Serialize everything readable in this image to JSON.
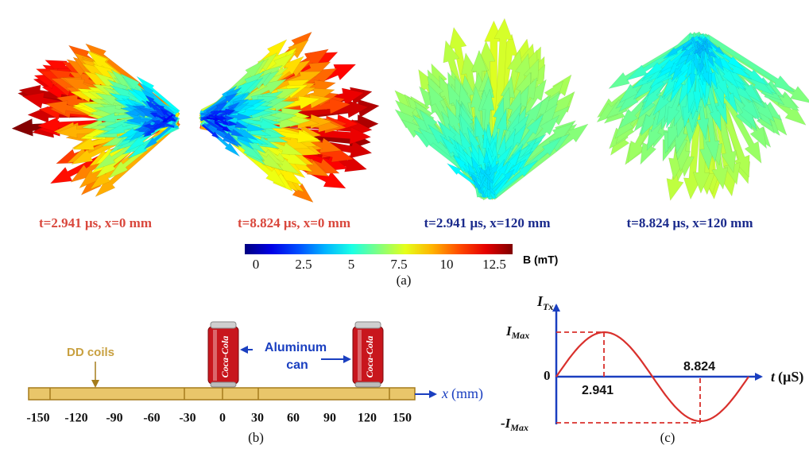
{
  "panel_a": {
    "snapshots": [
      {
        "label": "t=2.941 µs, x=0 mm"
      },
      {
        "label": "t=8.824 µs, x=0 mm"
      },
      {
        "label": "t=2.941 µs, x=120 mm"
      },
      {
        "label": "t=8.824 µs, x=120 mm"
      }
    ],
    "colorbar": {
      "ticks": [
        0,
        2.5,
        5,
        7.5,
        10,
        12.5
      ],
      "unit": "B (mT)"
    },
    "caption": "(a)"
  },
  "panel_b": {
    "coil_label": "DD coils",
    "can_label": [
      "Aluminum",
      "can"
    ],
    "can_logo": "Coca-Cola",
    "axis_variable": "x",
    "axis_unit": "(mm)",
    "ticks": [
      -150,
      -120,
      -90,
      -60,
      -30,
      0,
      30,
      60,
      90,
      120,
      150
    ],
    "caption": "(b)"
  },
  "panel_c": {
    "y_axis": {
      "main": "I",
      "sub": "Tx"
    },
    "max_label": {
      "main": "I",
      "sub": "Max"
    },
    "min_label": {
      "main": "-I",
      "sub": "Max"
    },
    "origin_label": 0,
    "x_axis": {
      "variable": "t",
      "unit": "(µS)"
    },
    "peak_time": 2.941,
    "trough_time": 8.824,
    "caption": "(c)"
  }
}
